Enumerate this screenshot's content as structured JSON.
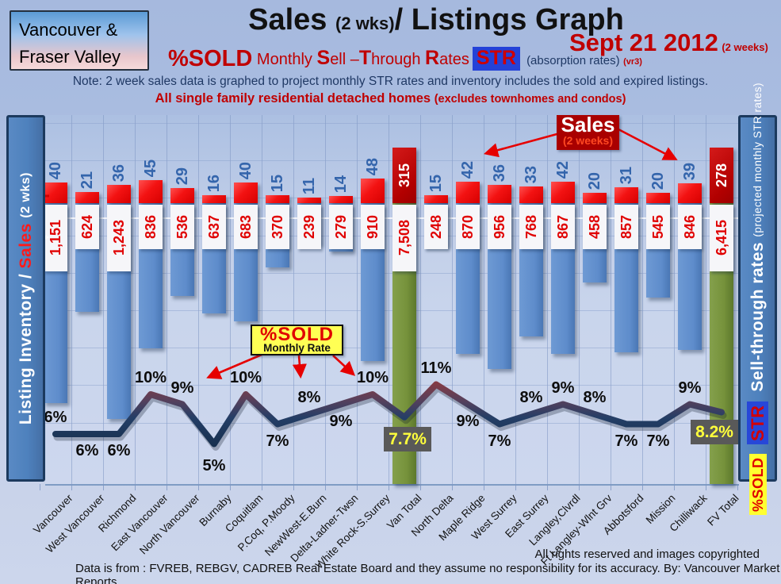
{
  "header": {
    "region_line1": "Vancouver &",
    "region_line2": "Fraser Valley",
    "title_main": "Sales",
    "title_small": "(2 wks)",
    "title_rest": "/ Listings Graph",
    "date": "Sept 21 2012",
    "date_suffix": "(2 weeks)",
    "subtitle": {
      "pct_sold": "%SOLD",
      "monthly": "Monthly",
      "sell_cap": "S",
      "sell_rest": "ell",
      "through_cap": "T",
      "through_rest": "hrough",
      "dash": "–",
      "rates_cap": "R",
      "rates_rest": "ates",
      "str_badge": "STR",
      "absorption": "(absorption rates)",
      "version": "(vr3)"
    },
    "note": "Note: 2 week sales data is graphed to project monthly STR rates and inventory includes the sold and expired listings.",
    "scope_main": "All single family residential detached homes",
    "scope_sub": "(excludes townhomes and condos)"
  },
  "left_axis": {
    "part1": "Listing Inventory / ",
    "part_red": "Sales",
    "part2": "(2  wks)"
  },
  "right_axis": {
    "main": "Sell-through rates",
    "sub": "(projected monthly STR rates)",
    "str_badge": "STR",
    "sold_badge": "%SOLD"
  },
  "legends": {
    "sales_title": "Sales",
    "sales_sub": "(2 weeks)",
    "sold_title": "%SOLD",
    "sold_sub": "Monthly Rate"
  },
  "footer": {
    "rights": "All rights reserved and  images copyrighted",
    "source": "Data is from : FVREB, REBGV, CADREB Real Estate Board and they assume no responsibility for its accuracy. By: Vancouver Market Reports"
  },
  "chart_data": {
    "type": "bar+line combo (inventory bars down, sales bars up, %sold line)",
    "categories": [
      "Vancouver",
      "West Vancouver",
      "Richmond",
      "East Vancouver",
      "North Vancouver",
      "Burnaby",
      "Coquitlam",
      "P.Coq, P.Moody",
      "NewWest-E.Burn",
      "Delta-Ladner-Twsn",
      "White Rock-S.Surrey",
      "Van Total",
      "North Delta",
      "Maple Ridge",
      "West Surrey",
      "East Surrey",
      "Langley,Clvrdl",
      "Ft Langley-Wlnt Grv",
      "Abbotsford",
      "Mission",
      "Chilliwack",
      "FV Total"
    ],
    "series": [
      {
        "name": "Listing Inventory",
        "values": [
          1151,
          624,
          1243,
          836,
          536,
          637,
          683,
          370,
          239,
          279,
          910,
          7508,
          248,
          870,
          956,
          768,
          867,
          458,
          857,
          545,
          846,
          6415
        ],
        "display": [
          "1,151",
          "624",
          "1,243",
          "836",
          "536",
          "637",
          "683",
          "370",
          "239",
          "279",
          "910",
          "7,508",
          "248",
          "870",
          "956",
          "768",
          "867",
          "458",
          "857",
          "545",
          "846",
          "6,415"
        ]
      },
      {
        "name": "Sales (2 weeks)",
        "values": [
          40,
          21,
          36,
          45,
          29,
          16,
          40,
          15,
          11,
          14,
          48,
          315,
          15,
          42,
          36,
          33,
          42,
          20,
          31,
          20,
          39,
          278
        ],
        "display": [
          "40",
          "21",
          "36",
          "45",
          "29",
          "16",
          "40",
          "15",
          "11",
          "14",
          "48",
          "315",
          "15",
          "42",
          "36",
          "33",
          "42",
          "20",
          "31",
          "20",
          "39",
          "278"
        ]
      },
      {
        "name": "%SOLD Monthly Rate",
        "values": [
          6,
          6,
          6,
          10,
          9,
          5,
          10,
          7,
          8,
          9,
          10,
          7.7,
          11,
          9,
          7,
          8,
          9,
          8,
          7,
          7,
          9,
          8.2
        ],
        "display": [
          "6%",
          "6%",
          "6%",
          "10%",
          "9%",
          "5%",
          "10%",
          "7%",
          "8%",
          "9%",
          "10%",
          "7.7%",
          "11%",
          "9%",
          "7%",
          "8%",
          "9%",
          "8%",
          "7%",
          "7%",
          "9%",
          "8.2%"
        ]
      }
    ],
    "totals_indices": [
      11,
      21
    ],
    "pct_label_placement": [
      "above",
      "below",
      "below",
      "above",
      "above",
      "below-far",
      "above",
      "below",
      "above",
      "below",
      "above",
      "box",
      "above",
      "below",
      "below",
      "above",
      "above",
      "above",
      "below",
      "below",
      "above",
      "box"
    ],
    "colors": {
      "inventory_bar": "#5E8CCB",
      "total_inventory_bar": "#76923B",
      "sales_bar": "#F31212",
      "total_sales_bar": "#B20000",
      "line": "#1F3B63",
      "line_peak_tint": "#8E3A40",
      "count_text": "#3465AC",
      "inventory_text": "#E00000",
      "pct_text": "#0D0D0D",
      "total_pct_box_bg": "#595959",
      "total_pct_box_text": "#FFFF3C",
      "accent_red": "#C00000"
    },
    "layout_hints": {
      "legend_sales": "top right of plot",
      "legend_pct_sold": "middle left of plot",
      "grid": "on",
      "x_labels_rotated": -45
    }
  }
}
